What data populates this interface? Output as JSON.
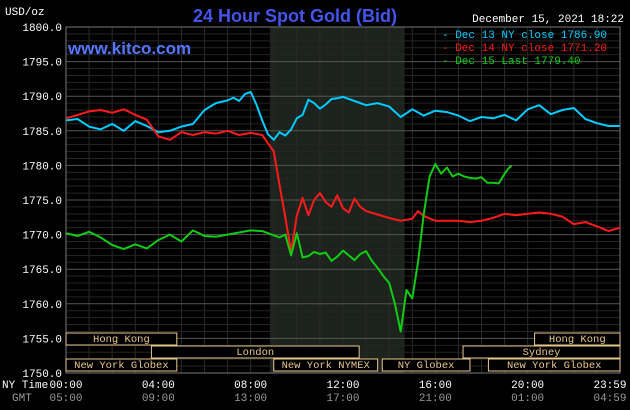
{
  "chart_data": {
    "type": "line",
    "title": "24 Hour Spot Gold (Bid)",
    "watermark": "www.kitco.com",
    "unit_label": "USD/oz",
    "datetime": "December 15, 2021 18:22",
    "ylim": [
      1750,
      1800
    ],
    "yticks": [
      "1800.0",
      "1795.0",
      "1790.0",
      "1785.0",
      "1780.0",
      "1775.0",
      "1770.0",
      "1765.0",
      "1760.0",
      "1755.0",
      "1750.0"
    ],
    "x_axis_label_ny": "NY Time",
    "x_axis_label_gmt": "GMT",
    "x_ticks_ny": [
      "00:00",
      "04:00",
      "08:00",
      "12:00",
      "16:00",
      "20:00",
      "23:59"
    ],
    "x_ticks_gmt": [
      "05:00",
      "09:00",
      "13:00",
      "17:00",
      "21:00",
      "01:00",
      "04:59"
    ],
    "x_tick_hours": [
      0,
      4,
      8,
      12,
      16,
      20,
      23.983
    ],
    "shade_hours": [
      8.83,
      14.67
    ],
    "legend_position": "top-right",
    "legend": [
      {
        "label": "- Dec 13 NY close 1786.90",
        "color": "#00ccff"
      },
      {
        "label": "- Dec 14 NY close 1771.20",
        "color": "#ff1a1a"
      },
      {
        "label": "- Dec 15 Last 1779.40",
        "color": "#11cc11"
      }
    ],
    "series": [
      {
        "name": "Dec 13",
        "color": "#00ccff",
        "x": [
          0,
          0.5,
          1,
          1.5,
          2,
          2.5,
          3,
          3.5,
          4,
          4.5,
          5,
          5.5,
          6,
          6.5,
          7,
          7.25,
          7.5,
          7.75,
          8,
          8.25,
          8.5,
          8.75,
          9,
          9.25,
          9.5,
          9.75,
          10,
          10.25,
          10.5,
          10.75,
          11,
          11.25,
          11.5,
          11.75,
          12,
          12.5,
          13,
          13.5,
          14,
          14.5,
          15,
          15.5,
          16,
          16.5,
          17,
          17.5,
          18,
          18.5,
          19,
          19.5,
          20,
          20.5,
          21,
          21.5,
          22,
          22.5,
          23,
          23.5,
          24
        ],
        "values": [
          1786.5,
          1786.7,
          1785.6,
          1785.2,
          1786.0,
          1785.0,
          1786.4,
          1785.7,
          1784.8,
          1785.0,
          1785.6,
          1786.0,
          1788.0,
          1789.0,
          1789.4,
          1789.8,
          1789.3,
          1790.3,
          1790.6,
          1788.8,
          1786.5,
          1784.5,
          1783.7,
          1784.8,
          1784.3,
          1785.2,
          1786.8,
          1787.3,
          1789.5,
          1789.0,
          1788.2,
          1788.8,
          1789.6,
          1789.7,
          1789.9,
          1789.3,
          1788.7,
          1789.0,
          1788.5,
          1787.0,
          1788.1,
          1787.2,
          1787.9,
          1787.7,
          1787.2,
          1786.4,
          1787.0,
          1786.8,
          1787.3,
          1786.5,
          1788.1,
          1788.7,
          1787.4,
          1788.0,
          1788.3,
          1786.7,
          1786.1,
          1785.7,
          1785.7
        ]
      },
      {
        "name": "Dec 14",
        "color": "#ff1a1a",
        "x": [
          0,
          0.5,
          1,
          1.5,
          2,
          2.5,
          3,
          3.5,
          4,
          4.5,
          5,
          5.5,
          6,
          6.5,
          7,
          7.5,
          8,
          8.5,
          9,
          9.25,
          9.5,
          9.75,
          10,
          10.25,
          10.5,
          10.75,
          11,
          11.25,
          11.5,
          11.75,
          12,
          12.25,
          12.5,
          12.75,
          13,
          13.5,
          14,
          14.5,
          15,
          15.25,
          15.5,
          16,
          16.5,
          17,
          17.5,
          18,
          18.5,
          19,
          19.5,
          20,
          20.5,
          21,
          21.5,
          22,
          22.5,
          23,
          23.5,
          24
        ],
        "values": [
          1786.8,
          1787.3,
          1787.8,
          1788.0,
          1787.6,
          1788.1,
          1787.3,
          1786.6,
          1784.2,
          1783.7,
          1784.8,
          1784.4,
          1784.8,
          1784.6,
          1785.0,
          1784.4,
          1784.7,
          1784.4,
          1782.0,
          1777.2,
          1772.5,
          1767.5,
          1772.7,
          1775.3,
          1772.8,
          1775.0,
          1776.0,
          1774.7,
          1774.0,
          1775.7,
          1773.8,
          1773.2,
          1775.2,
          1774.0,
          1773.4,
          1772.9,
          1772.4,
          1772.0,
          1772.3,
          1773.4,
          1772.7,
          1772.0,
          1772.0,
          1772.0,
          1771.8,
          1772.0,
          1772.4,
          1773.0,
          1772.8,
          1773.0,
          1773.2,
          1773.0,
          1772.6,
          1771.5,
          1771.8,
          1771.2,
          1770.5,
          1771.0
        ]
      },
      {
        "name": "Dec 15",
        "color": "#11cc11",
        "x": [
          0,
          0.5,
          1,
          1.5,
          2,
          2.5,
          3,
          3.5,
          4,
          4.5,
          5,
          5.5,
          6,
          6.5,
          7,
          7.5,
          8,
          8.5,
          9,
          9.25,
          9.5,
          9.75,
          10,
          10.25,
          10.5,
          10.75,
          11,
          11.25,
          11.5,
          11.75,
          12,
          12.25,
          12.5,
          12.75,
          13,
          13.25,
          13.5,
          13.75,
          14,
          14.25,
          14.5,
          14.75,
          15,
          15.25,
          15.5,
          15.75,
          16,
          16.25,
          16.5,
          16.75,
          17,
          17.25,
          17.5,
          17.75,
          18,
          18.25,
          18.5,
          18.75,
          19,
          19.15,
          19.3
        ],
        "values": [
          1770.2,
          1769.8,
          1770.4,
          1769.6,
          1768.5,
          1767.9,
          1768.6,
          1768.0,
          1769.2,
          1770.0,
          1769.0,
          1770.6,
          1769.8,
          1769.7,
          1770.0,
          1770.3,
          1770.6,
          1770.5,
          1769.9,
          1769.6,
          1770.0,
          1767.0,
          1770.2,
          1766.7,
          1766.9,
          1767.5,
          1767.2,
          1767.4,
          1766.2,
          1766.8,
          1767.7,
          1767.0,
          1766.3,
          1767.2,
          1767.6,
          1766.2,
          1765.2,
          1764.0,
          1763.0,
          1760.0,
          1756.0,
          1762.0,
          1760.8,
          1766.0,
          1773.0,
          1778.4,
          1780.2,
          1778.8,
          1779.7,
          1778.4,
          1778.8,
          1778.4,
          1778.2,
          1778.1,
          1778.3,
          1777.5,
          1777.5,
          1777.4,
          1778.8,
          1779.5,
          1780.0
        ]
      }
    ],
    "session_bars": [
      {
        "row": 1,
        "label": "Hong Kong",
        "start": 0,
        "end": 4.8
      },
      {
        "row": 1,
        "label": "Hong Kong",
        "start": 20.3,
        "end": 24
      },
      {
        "row": 2,
        "label": "London",
        "start": 3.7,
        "end": 12.7
      },
      {
        "row": 2,
        "label": "Sydney",
        "start": 17.2,
        "end": 24
      },
      {
        "row": 3,
        "label": "New York Globex",
        "start": 0,
        "end": 4.8
      },
      {
        "row": 3,
        "label": "New York NYMEX",
        "start": 9.0,
        "end": 13.5
      },
      {
        "row": 3,
        "label": "NY Globex",
        "start": 13.7,
        "end": 17.5
      },
      {
        "row": 3,
        "label": "New York Globex",
        "start": 18.3,
        "end": 24
      }
    ]
  }
}
